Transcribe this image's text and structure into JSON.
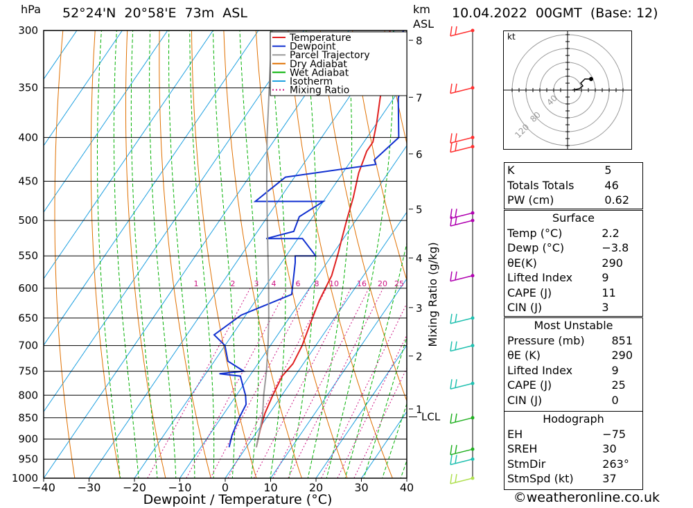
{
  "header": {
    "location": "52°24'N  20°58'E  73m  ASL",
    "datetime": "10.04.2022  00GMT  (Base: 12)",
    "unit_left": "hPa",
    "unit_km": "km",
    "unit_asl": "ASL"
  },
  "chart_data": {
    "type": "line",
    "title": "",
    "xlabel": "Dewpoint / Temperature (°C)",
    "ylabel": "hPa",
    "ylabel_right": "Mixing Ratio (g/kg)",
    "xlim": [
      -40,
      40
    ],
    "ylim": [
      1000,
      300
    ],
    "x_ticks": [
      -40,
      -30,
      -20,
      -10,
      0,
      10,
      20,
      30,
      40
    ],
    "x_tick_labels": [
      "−40",
      "−30",
      "−20",
      "−10",
      "0",
      "10",
      "20",
      "30",
      "40"
    ],
    "pressure_levels": [
      300,
      350,
      400,
      450,
      500,
      550,
      600,
      650,
      700,
      750,
      800,
      850,
      900,
      950,
      1000
    ],
    "km_ticks": [
      {
        "km": "1",
        "p": 830
      },
      {
        "km": "2",
        "p": 720
      },
      {
        "km": "3",
        "p": 632
      },
      {
        "km": "4",
        "p": 553
      },
      {
        "km": "5",
        "p": 485
      },
      {
        "km": "6",
        "p": 418
      },
      {
        "km": "7",
        "p": 359
      },
      {
        "km": "8",
        "p": 308
      }
    ],
    "lcl": {
      "label": "LCL",
      "p": 848
    },
    "mixing_ratio_labels": [
      "1",
      "2",
      "3",
      "4",
      "6",
      "8",
      "10",
      "16",
      "20",
      "25"
    ],
    "legend": [
      {
        "name": "Temperature",
        "color": "#e02020",
        "style": "solid"
      },
      {
        "name": "Dewpoint",
        "color": "#1030d0",
        "style": "solid"
      },
      {
        "name": "Parcel Trajectory",
        "color": "#999999",
        "style": "solid"
      },
      {
        "name": "Dry Adiabat",
        "color": "#e07000",
        "style": "solid"
      },
      {
        "name": "Wet Adiabat",
        "color": "#00b000",
        "style": "solid"
      },
      {
        "name": "Isotherm",
        "color": "#1ea0e0",
        "style": "solid"
      },
      {
        "name": "Mixing Ratio",
        "color": "#cc1080",
        "style": "dotted"
      }
    ],
    "legend_position": "top-right",
    "series": [
      {
        "name": "Temperature",
        "color": "#e02020",
        "points": [
          [
            2.2,
            920
          ],
          [
            0.5,
            880
          ],
          [
            -1.0,
            840
          ],
          [
            -2.0,
            800
          ],
          [
            -2.8,
            760
          ],
          [
            -2.3,
            735
          ],
          [
            -3.0,
            700
          ],
          [
            -4.5,
            660
          ],
          [
            -6.0,
            620
          ],
          [
            -7.0,
            580
          ],
          [
            -9.0,
            545
          ],
          [
            -10.0,
            530
          ],
          [
            -12.0,
            500
          ],
          [
            -14.0,
            470
          ],
          [
            -16.5,
            440
          ],
          [
            -18.0,
            415
          ],
          [
            -18.0,
            405
          ],
          [
            -20.0,
            385
          ],
          [
            -23.0,
            360
          ],
          [
            -26.0,
            335
          ],
          [
            -29.0,
            315
          ],
          [
            -31.0,
            300
          ]
        ]
      },
      {
        "name": "Dewpoint",
        "color": "#1030d0",
        "points": [
          [
            -3.8,
            920
          ],
          [
            -5.0,
            890
          ],
          [
            -6.0,
            850
          ],
          [
            -6.5,
            820
          ],
          [
            -8.0,
            800
          ],
          [
            -10.0,
            780
          ],
          [
            -12.0,
            760
          ],
          [
            -17.0,
            755
          ],
          [
            -12.0,
            750
          ],
          [
            -17.0,
            730
          ],
          [
            -20.0,
            700
          ],
          [
            -24.0,
            680
          ],
          [
            -21.0,
            645
          ],
          [
            -13.0,
            610
          ],
          [
            -17.0,
            560
          ],
          [
            -18.0,
            550
          ],
          [
            -13.5,
            550
          ],
          [
            -19.0,
            525
          ],
          [
            -27.0,
            525
          ],
          [
            -22.0,
            515
          ],
          [
            -23.0,
            495
          ],
          [
            -20.0,
            475
          ],
          [
            -35.0,
            475
          ],
          [
            -32.0,
            445
          ],
          [
            -14.0,
            430
          ],
          [
            -15.0,
            425
          ],
          [
            -13.0,
            400
          ],
          [
            -19.0,
            360
          ],
          [
            -21.0,
            340
          ],
          [
            -24.0,
            330
          ],
          [
            -27.0,
            320
          ],
          [
            -28.0,
            310
          ],
          [
            -28.0,
            300
          ]
        ]
      },
      {
        "name": "Parcel Trajectory",
        "color": "#999999",
        "points": [
          [
            2.2,
            920
          ],
          [
            -1.0,
            848
          ],
          [
            -4.0,
            800
          ],
          [
            -7.0,
            750
          ],
          [
            -10.5,
            700
          ],
          [
            -14.5,
            650
          ],
          [
            -19.0,
            600
          ],
          [
            -24.0,
            550
          ],
          [
            -29.5,
            500
          ],
          [
            -35.5,
            450
          ],
          [
            -42.0,
            400
          ],
          [
            -49.0,
            350
          ],
          [
            -57.0,
            300
          ]
        ]
      }
    ],
    "wind_barbs": [
      {
        "p": 300,
        "color": "#ff3030"
      },
      {
        "p": 350,
        "color": "#ff3030"
      },
      {
        "p": 400,
        "color": "#ff3030"
      },
      {
        "p": 410,
        "color": "#ff3030"
      },
      {
        "p": 490,
        "color": "#b000b0"
      },
      {
        "p": 500,
        "color": "#b000b0"
      },
      {
        "p": 580,
        "color": "#b000b0"
      },
      {
        "p": 650,
        "color": "#20c0b0"
      },
      {
        "p": 700,
        "color": "#20c0b0"
      },
      {
        "p": 775,
        "color": "#20c0b0"
      },
      {
        "p": 850,
        "color": "#20b020"
      },
      {
        "p": 925,
        "color": "#20b020"
      },
      {
        "p": 950,
        "color": "#20c0b0"
      },
      {
        "p": 1000,
        "color": "#b0e050"
      }
    ]
  },
  "hodograph": {
    "unit": "kt",
    "rings": [
      "40",
      "80",
      "120"
    ]
  },
  "indices": {
    "k_label": "K",
    "k": "5",
    "tt_label": "Totals Totals",
    "tt": "46",
    "pw_label": "PW (cm)",
    "pw": "0.62"
  },
  "surface": {
    "title": "Surface",
    "temp_label": "Temp (°C)",
    "temp": "2.2",
    "dewp_label": "Dewp (°C)",
    "dewp": "−3.8",
    "thetae_label": "θE(K)",
    "thetae": "290",
    "li_label": "Lifted Index",
    "li": "9",
    "cape_label": "CAPE (J)",
    "cape": "11",
    "cin_label": "CIN (J)",
    "cin": "3"
  },
  "most_unstable": {
    "title": "Most Unstable",
    "pressure_label": "Pressure (mb)",
    "pressure": "851",
    "thetae_label": "θE (K)",
    "thetae": "290",
    "li_label": "Lifted Index",
    "li": "9",
    "cape_label": "CAPE (J)",
    "cape": "25",
    "cin_label": "CIN (J)",
    "cin": "0"
  },
  "hodo_params": {
    "title": "Hodograph",
    "eh_label": "EH",
    "eh": "−75",
    "sreh_label": "SREH",
    "sreh": "30",
    "stmdir_label": "StmDir",
    "stmdir": "263°",
    "stmspd_label": "StmSpd (kt)",
    "stmspd": "37"
  },
  "footer": {
    "credit": "©weatheronline.co.uk"
  }
}
